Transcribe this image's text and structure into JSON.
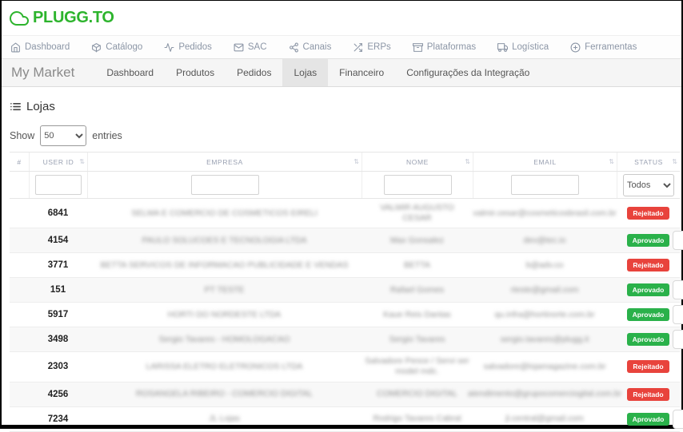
{
  "brand": {
    "logo_text": "PLUGG.TO",
    "logo_color": "#2db42d",
    "logo_icon": "cloud-icon"
  },
  "top_nav": {
    "items": [
      {
        "label": "Dashboard",
        "icon": "home-icon"
      },
      {
        "label": "Catálogo",
        "icon": "cube-icon"
      },
      {
        "label": "Pedidos",
        "icon": "activity-icon"
      },
      {
        "label": "SAC",
        "icon": "mail-icon"
      },
      {
        "label": "Canais",
        "icon": "share-icon"
      },
      {
        "label": "ERPs",
        "icon": "shuffle-icon"
      },
      {
        "label": "Plataformas",
        "icon": "archive-icon"
      },
      {
        "label": "Logística",
        "icon": "truck-icon"
      },
      {
        "label": "Ferramentas",
        "icon": "plus-circle-icon"
      }
    ]
  },
  "sub_nav": {
    "app_name": "My Market",
    "tabs": [
      {
        "label": "Dashboard",
        "active": false
      },
      {
        "label": "Produtos",
        "active": false
      },
      {
        "label": "Pedidos",
        "active": false
      },
      {
        "label": "Lojas",
        "active": true
      },
      {
        "label": "Financeiro",
        "active": false
      },
      {
        "label": "Configurações da Integração",
        "active": false
      }
    ]
  },
  "page": {
    "title": "Lojas",
    "title_icon": "list-icon"
  },
  "entries_control": {
    "show_label": "Show",
    "selected_value": "50",
    "entries_label": "entries"
  },
  "table": {
    "columns": [
      {
        "label": "#",
        "sortable": false,
        "filter": "none"
      },
      {
        "label": "USER ID",
        "sortable": true,
        "filter": "input"
      },
      {
        "label": "EMPRESA",
        "sortable": true,
        "filter": "input"
      },
      {
        "label": "NOME",
        "sortable": true,
        "filter": "input"
      },
      {
        "label": "EMAIL",
        "sortable": true,
        "filter": "input"
      },
      {
        "label": "STATUS",
        "sortable": true,
        "filter": "select"
      }
    ],
    "status_filter_selected": "Todos",
    "status_colors": {
      "Aprovado": "#2ab14a",
      "Rejeitado": "#e8433c"
    },
    "rows": [
      {
        "user_id": "6841",
        "empresa": "SELMA E COMERCIO DE COSMETICOS EIRELI",
        "nome": "VALMIR AUGUSTO CESAR",
        "email": "valmir.cesar@cosmeticosbrasil.com.br",
        "status": "Rejeitado",
        "blurred": true
      },
      {
        "user_id": "4154",
        "empresa": "PAULO SOLUCOES E TECNOLOGIA LTDA",
        "nome": "Max Gonsalez",
        "email": "dev@tec.io",
        "status": "Aprovado",
        "blurred": true
      },
      {
        "user_id": "3771",
        "empresa": "BETTA SERVICOS DE INFORMACAO PUBLICIDADE E VENDAS",
        "nome": "BETTA",
        "email": "b@adv.co",
        "status": "Rejeitado",
        "blurred": true
      },
      {
        "user_id": "151",
        "empresa": "PT TESTE",
        "nome": "Rafael Gomes",
        "email": "rteste@gmail.com",
        "status": "Aprovado",
        "blurred": true
      },
      {
        "user_id": "5917",
        "empresa": "HORTI DO NORDESTE LTDA",
        "nome": "Kaue Reis Dantas",
        "email": "qu.infra@hortinorte.com.br",
        "status": "Aprovado",
        "blurred": true
      },
      {
        "user_id": "3498",
        "empresa": "Sergio Tavares - HOMOLOGACAO",
        "nome": "Sergio Tavares",
        "email": "sergio.tavares@plugg.it",
        "status": "Aprovado",
        "blurred": true
      },
      {
        "user_id": "2303",
        "empresa": "LARISSA ELETRO ELETRONICOS LTDA",
        "nome": "Salvadore Pence / Servi ser model mdc.",
        "email": "salvadore@lojamagazine.com.br",
        "status": "Rejeitado",
        "blurred": true
      },
      {
        "user_id": "4256",
        "empresa": "ROSANGELA RIBEIRO - COMERCIO DIGITAL",
        "nome": "COMERCIO DIGITAL",
        "email": "atendimento@grupocomerciogital.com.br",
        "status": "Rejeitado",
        "blurred": true
      },
      {
        "user_id": "7234",
        "empresa": "JL Lojas",
        "nome": "Rodrigo Tavares Cabral",
        "email": "jl.central@gmail.com",
        "status": "Aprovado",
        "blurred": true
      }
    ]
  }
}
